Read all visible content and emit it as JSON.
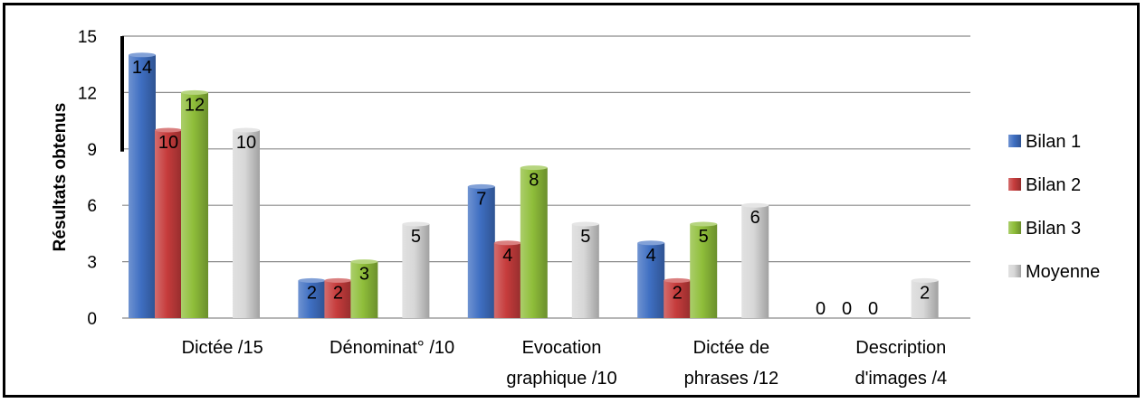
{
  "chart_data": {
    "type": "bar",
    "ylabel": "Résultats obtenus",
    "ylim": [
      0,
      15
    ],
    "yticks": [
      0,
      3,
      6,
      9,
      12,
      15
    ],
    "grid": true,
    "legend_position": "right",
    "categories": [
      [
        "Dictée /15"
      ],
      [
        "Dénominat° /10"
      ],
      [
        "Evocation",
        "graphique /10"
      ],
      [
        "Dictée de",
        "phrases /12"
      ],
      [
        "Description",
        "d'images /4"
      ]
    ],
    "series": [
      {
        "name": "Bilan 1",
        "color": "#3f6fc2",
        "values": [
          14,
          2,
          7,
          4,
          0
        ]
      },
      {
        "name": "Bilan 2",
        "color": "#c63c3c",
        "values": [
          10,
          2,
          4,
          2,
          0
        ]
      },
      {
        "name": "Bilan 3",
        "color": "#8fbe3a",
        "values": [
          12,
          3,
          8,
          5,
          0
        ]
      },
      {
        "name": "Moyenne",
        "color": "#d7d7d7",
        "values": [
          10,
          5,
          5,
          6,
          2
        ]
      }
    ]
  }
}
